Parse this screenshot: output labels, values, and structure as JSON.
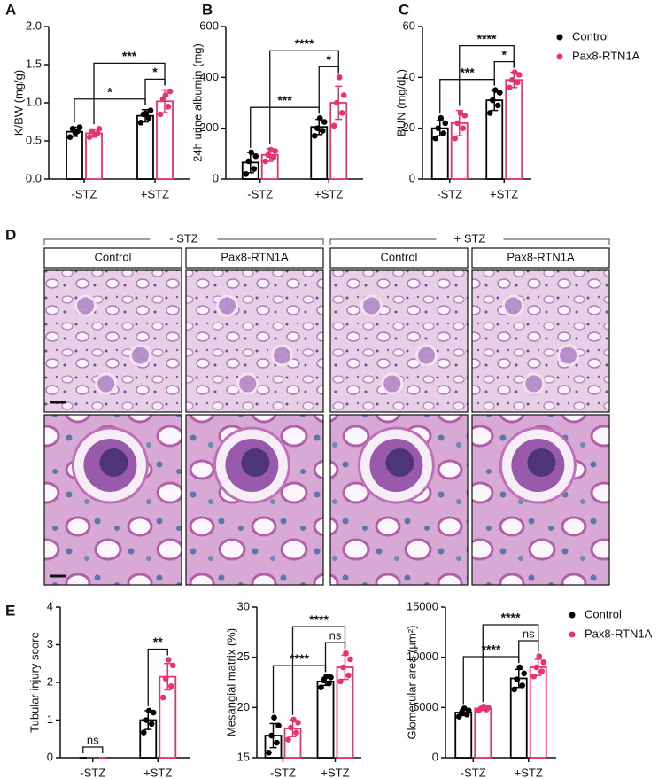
{
  "chart_data": [
    {
      "type": "bar",
      "panel": "A",
      "y_label": "K/BW (mg/g)",
      "categories": [
        "-STZ",
        "+STZ"
      ],
      "ylim": [
        0,
        2
      ],
      "yticks": [
        {
          "value": 0,
          "label": "0.0"
        },
        0.5,
        {
          "value": 1,
          "label": "1.0"
        },
        1.5,
        {
          "value": 2,
          "label": "2.0"
        }
      ],
      "series": [
        {
          "name": "Control",
          "color": "#000000",
          "values": [
            0.62,
            0.83
          ],
          "errors": [
            0.06,
            0.08
          ],
          "points": [
            [
              0.55,
              0.63,
              0.66,
              0.68,
              0.6
            ],
            [
              0.74,
              0.8,
              0.85,
              0.9,
              0.86
            ]
          ]
        },
        {
          "name": "Pax8-RTN1A",
          "color": "#e8336e",
          "values": [
            0.6,
            1.02
          ],
          "errors": [
            0.05,
            0.15
          ],
          "points": [
            [
              0.55,
              0.6,
              0.63,
              0.66,
              0.58
            ],
            [
              0.85,
              0.95,
              1.05,
              1.15,
              1.1
            ]
          ]
        }
      ],
      "significance": [
        "*",
        "*",
        "***"
      ]
    },
    {
      "type": "bar",
      "panel": "B",
      "y_label": "24h urine albumin (mg)",
      "categories": [
        "-STZ",
        "+STZ"
      ],
      "ylim": [
        0,
        600
      ],
      "yticks": [
        0,
        200,
        400,
        600
      ],
      "series": [
        {
          "name": "Control",
          "color": "#000000",
          "values": [
            65,
            205
          ],
          "errors": [
            40,
            30
          ],
          "points": [
            [
              20,
              40,
              70,
              90,
              105
            ],
            [
              170,
              190,
              200,
              225,
              240
            ]
          ]
        },
        {
          "name": "Pax8-RTN1A",
          "color": "#e8336e",
          "values": [
            95,
            300
          ],
          "errors": [
            25,
            65
          ],
          "points": [
            [
              70,
              85,
              95,
              110,
              115
            ],
            [
              210,
              260,
              300,
              330,
              400
            ]
          ]
        }
      ],
      "significance": [
        "***",
        "*",
        "****"
      ]
    },
    {
      "type": "bar",
      "panel": "C",
      "y_label": "BUN (mg/dL)",
      "categories": [
        "-STZ",
        "+STZ"
      ],
      "ylim": [
        0,
        60
      ],
      "yticks": [
        0,
        20,
        40,
        60
      ],
      "series": [
        {
          "name": "Control",
          "color": "#000000",
          "values": [
            20,
            31
          ],
          "errors": [
            3,
            4
          ],
          "points": [
            [
              16,
              18,
              20,
              22,
              24
            ],
            [
              26,
              29,
              31,
              34,
              35
            ]
          ]
        },
        {
          "name": "Pax8-RTN1A",
          "color": "#e8336e",
          "values": [
            22,
            39
          ],
          "errors": [
            5,
            3
          ],
          "points": [
            [
              16,
              20,
              22,
              25,
              26
            ],
            [
              36,
              38,
              39,
              41,
              42
            ]
          ]
        }
      ],
      "significance": [
        "***",
        "*",
        "****"
      ]
    },
    {
      "type": "bar",
      "panel": "E",
      "y_label": "Tubular injury score",
      "categories": [
        "-STZ",
        "+STZ"
      ],
      "ylim": [
        0,
        4
      ],
      "yticks": [
        0,
        1,
        2,
        3,
        4
      ],
      "series": [
        {
          "name": "Control",
          "color": "#000000",
          "values": [
            0,
            1.0
          ],
          "errors": [
            0,
            0.25
          ],
          "points": [
            [],
            [
              0.67,
              0.9,
              1.0,
              1.2,
              1.25
            ]
          ]
        },
        {
          "name": "Pax8-RTN1A",
          "color": "#e8336e",
          "values": [
            0,
            2.15
          ],
          "errors": [
            0,
            0.35
          ],
          "points": [
            [],
            [
              1.6,
              1.9,
              2.1,
              2.45,
              2.6
            ]
          ]
        }
      ],
      "significance": [
        "ns",
        "**"
      ]
    },
    {
      "type": "bar",
      "y_label": "Mesangial matrix (%)",
      "categories": [
        "-STZ",
        "+STZ"
      ],
      "ylim": [
        15,
        30
      ],
      "yticks": [
        15,
        20,
        25,
        30
      ],
      "series": [
        {
          "name": "Control",
          "color": "#000000",
          "values": [
            17.2,
            22.6
          ],
          "errors": [
            1.2,
            0.4
          ],
          "points": [
            [
              15.5,
              16.5,
              17.2,
              18.2,
              19.0
            ],
            [
              22.0,
              22.4,
              22.7,
              23.0,
              23.1
            ]
          ]
        },
        {
          "name": "Pax8-RTN1A",
          "color": "#e8336e",
          "values": [
            17.9,
            24.0
          ],
          "errors": [
            0.8,
            1.2
          ],
          "points": [
            [
              16.8,
              17.5,
              18.0,
              18.5,
              18.8
            ],
            [
              22.6,
              23.2,
              24.0,
              24.8,
              25.4
            ]
          ]
        }
      ],
      "significance": [
        "****",
        "ns",
        "****"
      ]
    },
    {
      "type": "bar",
      "y_label": "Glomerular area (µm²)",
      "categories": [
        "-STZ",
        "+STZ"
      ],
      "ylim": [
        0,
        15000
      ],
      "yticks": [
        0,
        5000,
        10000,
        15000
      ],
      "series": [
        {
          "name": "Control",
          "color": "#000000",
          "values": [
            4500,
            7900
          ],
          "errors": [
            300,
            900
          ],
          "points": [
            [
              4100,
              4300,
              4500,
              4700,
              4900
            ],
            [
              6800,
              7200,
              7800,
              8400,
              9000
            ]
          ]
        },
        {
          "name": "Pax8-RTN1A",
          "color": "#e8336e",
          "values": [
            4900,
            9000
          ],
          "errors": [
            150,
            800
          ],
          "points": [
            [
              4700,
              4800,
              4900,
              5000,
              5100
            ],
            [
              8100,
              8600,
              9000,
              9500,
              10100
            ]
          ]
        }
      ],
      "significance": [
        "****",
        "ns",
        "****"
      ]
    }
  ],
  "histology": {
    "label": "D",
    "groups": [
      {
        "name": "- STZ",
        "columns": [
          "Control",
          "Pax8-RTN1A"
        ]
      },
      {
        "name": "+ STZ",
        "columns": [
          "Control",
          "Pax8-RTN1A"
        ]
      }
    ]
  }
}
